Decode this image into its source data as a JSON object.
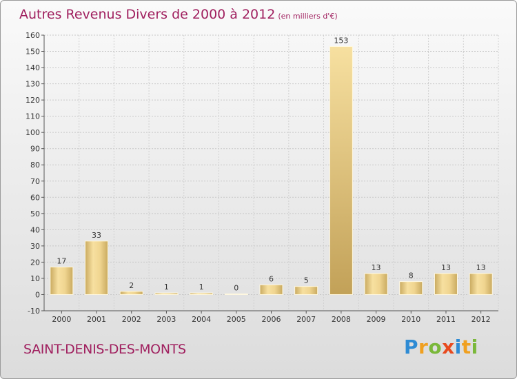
{
  "chart_data": {
    "type": "bar",
    "title": "Autres Revenus Divers de 2000 à 2012",
    "subtitle": "(en milliers d'€)",
    "categories": [
      "2000",
      "2001",
      "2002",
      "2003",
      "2004",
      "2005",
      "2006",
      "2007",
      "2008",
      "2009",
      "2010",
      "2011",
      "2012"
    ],
    "values": [
      17,
      33,
      2,
      1,
      1,
      0,
      6,
      5,
      153,
      13,
      8,
      13,
      13
    ],
    "ylim": [
      -10,
      160
    ],
    "yticks": [
      -10,
      0,
      10,
      20,
      30,
      40,
      50,
      60,
      70,
      80,
      90,
      100,
      110,
      120,
      130,
      140,
      150,
      160
    ],
    "grid": true,
    "bar_color": "#e2c478",
    "highlight_color": "#c8a85a"
  },
  "place": "SAINT-DENIS-DES-MONTS",
  "logo": {
    "text": "Proxiti"
  }
}
